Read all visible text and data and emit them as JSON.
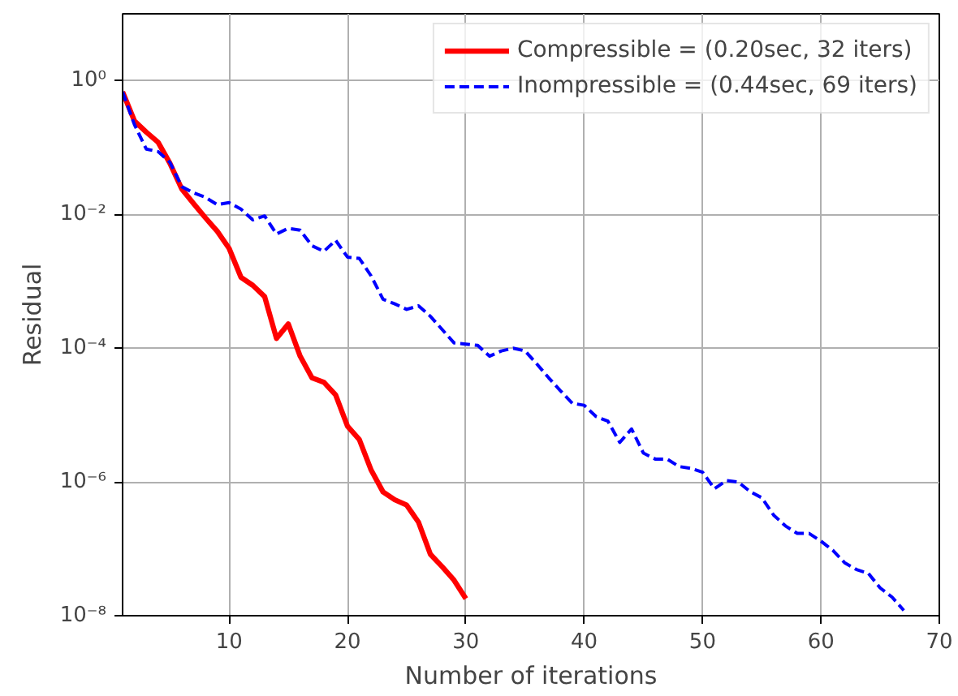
{
  "chart_data": {
    "type": "line",
    "xlabel": "Number of iterations",
    "ylabel": "Residual",
    "log": "y",
    "grid": true,
    "legend": "top right",
    "xlim": [
      1,
      70
    ],
    "xticks": [
      10,
      20,
      30,
      40,
      50,
      60,
      70
    ],
    "ylim": [
      1e-08,
      10
    ],
    "yticks": [
      {
        "value": 1,
        "label": "10⁰"
      },
      {
        "value": 0.01,
        "label": "10⁻²"
      },
      {
        "value": 0.0001,
        "label": "10⁻⁴"
      },
      {
        "value": 1e-06,
        "label": "10⁻⁶"
      },
      {
        "value": 1e-08,
        "label": "10⁻⁸"
      }
    ],
    "series": [
      {
        "name": "Compressible = (0.20sec, 32 iters)",
        "color": "#ff0000",
        "line_style": "solid",
        "x": [
          1,
          2,
          3,
          4,
          5,
          6,
          7,
          8,
          9,
          10,
          11,
          12,
          13,
          14,
          15,
          16,
          17,
          18,
          19,
          20,
          21,
          22,
          23,
          24,
          25,
          26,
          27,
          28,
          29,
          30
        ],
        "values": [
          0.68,
          0.25,
          0.17,
          0.12,
          0.058,
          0.024,
          0.0145,
          0.0089,
          0.0056,
          0.0031,
          0.00115,
          0.00087,
          0.00059,
          0.00014,
          0.00023,
          7.6e-05,
          3.6e-05,
          3.1e-05,
          2e-05,
          6.8e-06,
          4.3e-06,
          1.5e-06,
          7.1e-07,
          5.4e-07,
          4.5e-07,
          2.5e-07,
          8.3e-08,
          5.4e-08,
          3.4e-08,
          1.8e-08
        ]
      },
      {
        "name": "Inompressible = (0.44sec, 69 iters)",
        "color": "#0000ff",
        "line_style": "dashed",
        "x": [
          1,
          2,
          3,
          4,
          5,
          6,
          7,
          8,
          9,
          10,
          11,
          12,
          13,
          14,
          15,
          16,
          17,
          18,
          19,
          20,
          21,
          22,
          23,
          24,
          25,
          26,
          27,
          28,
          29,
          30,
          31,
          32,
          33,
          34,
          35,
          36,
          37,
          38,
          39,
          40,
          41,
          42,
          43,
          44,
          45,
          46,
          47,
          48,
          49,
          50,
          51,
          52,
          53,
          54,
          55,
          56,
          57,
          58,
          59,
          60,
          61,
          62,
          63,
          64,
          65,
          66,
          67
        ],
        "values": [
          0.68,
          0.22,
          0.095,
          0.087,
          0.06,
          0.026,
          0.021,
          0.018,
          0.014,
          0.015,
          0.012,
          0.0083,
          0.0095,
          0.0051,
          0.0062,
          0.0058,
          0.0034,
          0.0028,
          0.0041,
          0.0023,
          0.0022,
          0.0012,
          0.00054,
          0.00046,
          0.00038,
          0.00043,
          0.0003,
          0.00019,
          0.00012,
          0.000115,
          0.00011,
          7.6e-05,
          9.1e-05,
          0.0001,
          9.1e-05,
          5.8e-05,
          3.6e-05,
          2.3e-05,
          1.5e-05,
          1.4e-05,
          9.5e-06,
          8.1e-06,
          3.9e-06,
          6.2e-06,
          2.7e-06,
          2.2e-06,
          2.2e-06,
          1.7e-06,
          1.6e-06,
          1.4e-06,
          7.9e-07,
          1.05e-06,
          1e-06,
          7.2e-07,
          5.8e-07,
          3.2e-07,
          2.2e-07,
          1.7e-07,
          1.7e-07,
          1.3e-07,
          9.5e-08,
          6.2e-08,
          4.9e-08,
          4.3e-08,
          2.6e-08,
          1.9e-08,
          1.2e-08
        ]
      }
    ]
  }
}
